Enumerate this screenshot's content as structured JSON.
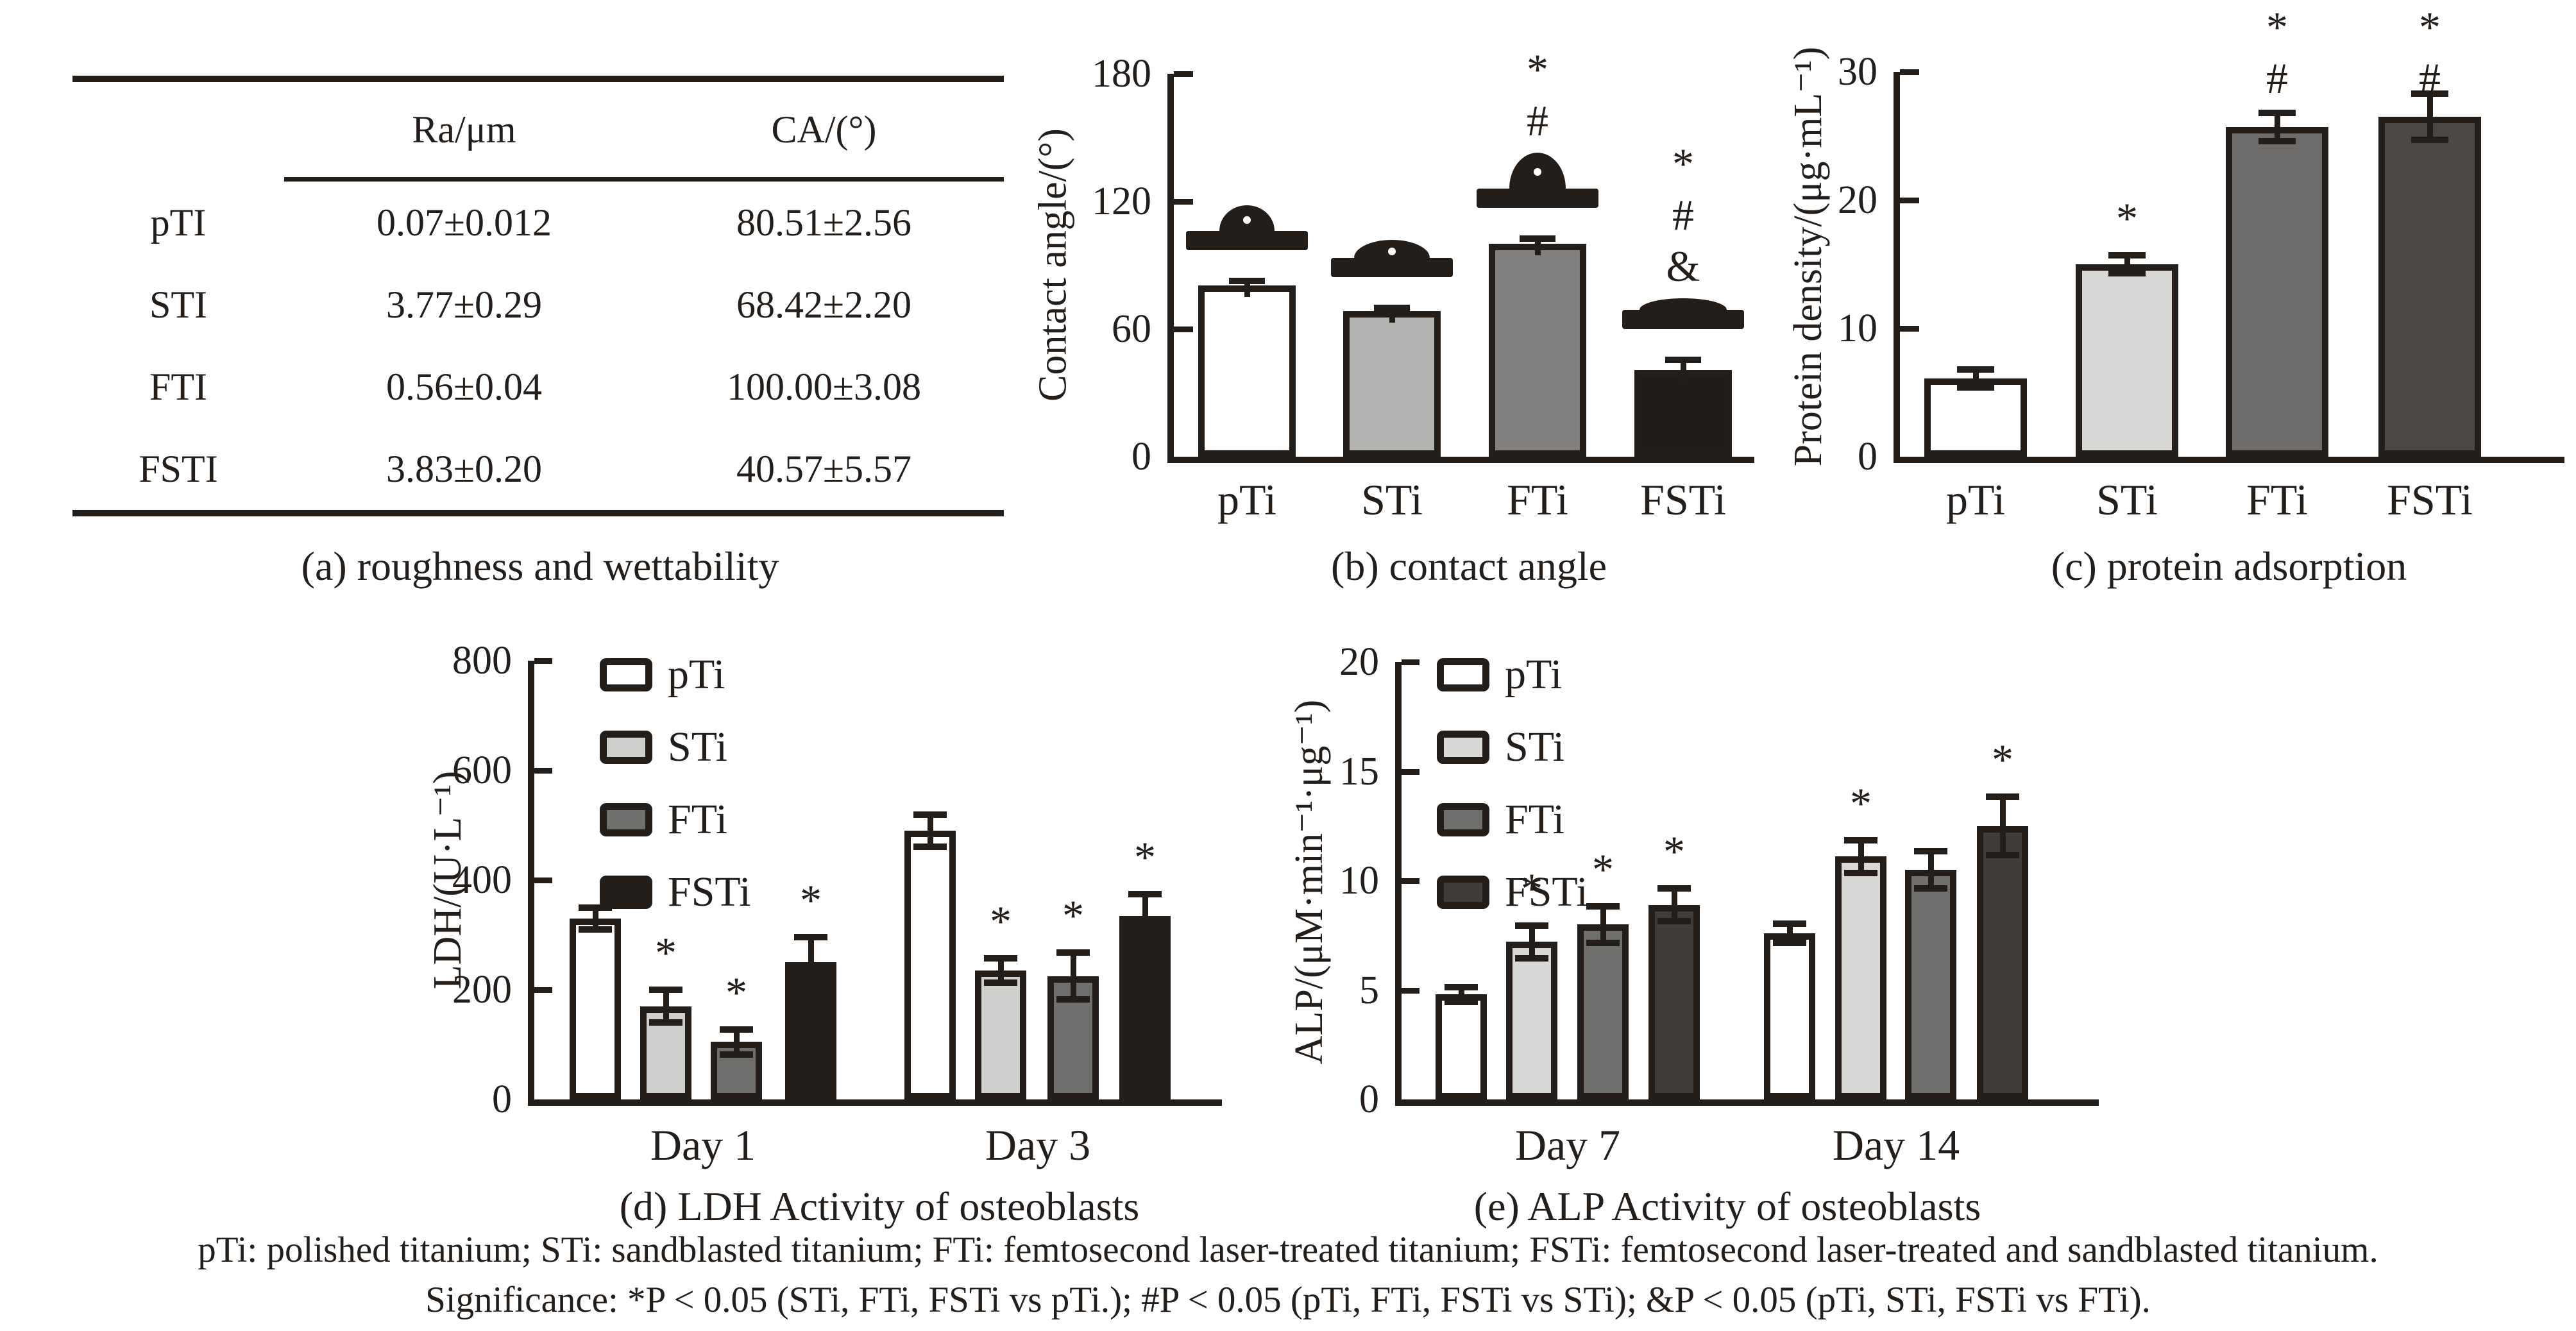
{
  "ink_color": "#241e1b",
  "panel_a": {
    "caption": "(a) roughness and wettability",
    "table": {
      "columns": [
        "",
        "Ra/μm",
        "CA/(°)"
      ],
      "rows": [
        {
          "label": "pTI",
          "values": [
            "0.07±0.012",
            "80.51±2.56"
          ]
        },
        {
          "label": "STI",
          "values": [
            "3.77±0.29",
            "68.42±2.20"
          ]
        },
        {
          "label": "FTI",
          "values": [
            "0.56±0.04",
            "100.00±3.08"
          ]
        },
        {
          "label": "FSTI",
          "values": [
            "3.83±0.20",
            "40.57±5.57"
          ]
        }
      ]
    }
  },
  "chart_data": [
    {
      "id": "b",
      "type": "bar",
      "caption": "(b) contact angle",
      "ylabel": "Contact angle/(°)",
      "ylim": [
        0,
        180
      ],
      "yticks": [
        0,
        60,
        120,
        180
      ],
      "grid": false,
      "categories": [
        "pTi",
        "STi",
        "FTi",
        "FSTi"
      ],
      "values": [
        80.5,
        68.4,
        100.0,
        40.6
      ],
      "errors": [
        2.6,
        2.2,
        3.1,
        5.6
      ],
      "significance": [
        [],
        [],
        [
          "*",
          "#"
        ],
        [
          "*",
          "#",
          "&"
        ]
      ],
      "bar_colors": [
        "#ffffff",
        "#b3b3b1",
        "#82807e",
        "#211c1a"
      ],
      "droplet_photos": true
    },
    {
      "id": "c",
      "type": "bar",
      "caption": "(c) protein adsorption",
      "ylabel": "Protein density/(μg·mL⁻¹)",
      "ylim": [
        0,
        30
      ],
      "yticks": [
        0,
        10,
        20,
        30
      ],
      "grid": false,
      "categories": [
        "pTi",
        "STi",
        "FTi",
        "FSTi"
      ],
      "values": [
        6.1,
        15.0,
        25.7,
        26.5
      ],
      "errors": [
        0.8,
        0.8,
        1.2,
        1.9
      ],
      "significance": [
        [],
        [
          "*"
        ],
        [
          "*",
          "#"
        ],
        [
          "*",
          "#"
        ]
      ],
      "bar_colors": [
        "#ffffff",
        "#d8d8d6",
        "#6e6c6a",
        "#4a4745"
      ]
    },
    {
      "id": "d",
      "type": "grouped-bar",
      "caption": "(d) LDH Activity of osteoblasts",
      "ylabel": "LDH/(U·L⁻¹)",
      "ylim": [
        0,
        800
      ],
      "yticks": [
        0,
        200,
        400,
        600,
        800
      ],
      "grid": false,
      "legend_position": "top-left",
      "groups": [
        "Day 1",
        "Day 3"
      ],
      "series": [
        {
          "name": "pTi",
          "color": "#ffffff",
          "values": [
            330,
            490
          ],
          "errors": [
            22,
            32
          ],
          "significance": [
            null,
            null
          ]
        },
        {
          "name": "STi",
          "color": "#cfcfcd",
          "values": [
            170,
            235
          ],
          "errors": [
            32,
            25
          ],
          "significance": [
            "*",
            "*"
          ]
        },
        {
          "name": "FTi",
          "color": "#6f6f6d",
          "values": [
            105,
            225
          ],
          "errors": [
            25,
            45
          ],
          "significance": [
            "*",
            "*"
          ]
        },
        {
          "name": "FSTi",
          "color": "#221d1b",
          "values": [
            250,
            335
          ],
          "errors": [
            48,
            42
          ],
          "significance": [
            "*",
            "*"
          ]
        }
      ]
    },
    {
      "id": "e",
      "type": "grouped-bar",
      "caption": "(e) ALP Activity of osteoblasts",
      "ylabel": "ALP/(μM·min⁻¹·μg⁻¹)",
      "ylim": [
        0,
        20
      ],
      "yticks": [
        0,
        5,
        10,
        15,
        20
      ],
      "grid": false,
      "legend_position": "top-left",
      "groups": [
        "Day 7",
        "Day 14"
      ],
      "series": [
        {
          "name": "pTi",
          "color": "#ffffff",
          "values": [
            4.8,
            7.6
          ],
          "errors": [
            0.4,
            0.5
          ],
          "significance": [
            null,
            null
          ]
        },
        {
          "name": "STi",
          "color": "#d8d8d6",
          "values": [
            7.2,
            11.1
          ],
          "errors": [
            0.8,
            0.8
          ],
          "significance": [
            "*",
            "*"
          ]
        },
        {
          "name": "FTi",
          "color": "#6f6f6d",
          "values": [
            8.0,
            10.5
          ],
          "errors": [
            0.9,
            0.9
          ],
          "significance": [
            "*",
            null
          ]
        },
        {
          "name": "FSTi",
          "color": "#403c3a",
          "values": [
            8.9,
            12.5
          ],
          "errors": [
            0.8,
            1.4
          ],
          "significance": [
            "*",
            "*"
          ]
        }
      ]
    }
  ],
  "footnote": {
    "line1": "pTi: polished titanium; STi: sandblasted titanium; FTi: femtosecond laser-treated titanium; FSTi: femtosecond laser-treated and sandblasted titanium.",
    "line2": "Significance: *P < 0.05 (STi, FTi, FSTi vs pTi.); #P < 0.05 (pTi, FTi, FSTi vs STi); &P < 0.05 (pTi, STi, FSTi vs FTi)."
  }
}
